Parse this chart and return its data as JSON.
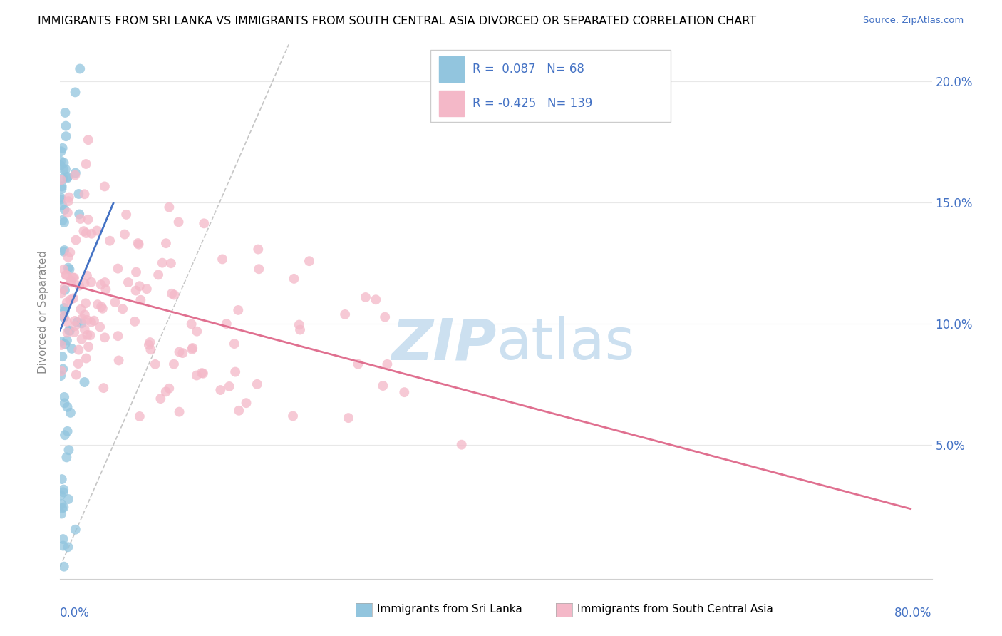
{
  "title": "IMMIGRANTS FROM SRI LANKA VS IMMIGRANTS FROM SOUTH CENTRAL ASIA DIVORCED OR SEPARATED CORRELATION CHART",
  "source": "Source: ZipAtlas.com",
  "ylabel_label": "Divorced or Separated",
  "sri_lanka_R": 0.087,
  "sri_lanka_N": 68,
  "south_central_R": -0.425,
  "south_central_N": 139,
  "blue_color": "#92c5de",
  "pink_color": "#f4b8c8",
  "blue_line_color": "#4472c4",
  "pink_line_color": "#e07090",
  "ref_line_color": "#c0c0c0",
  "watermark_color": "#cce0f0",
  "background_color": "#ffffff",
  "scatter_alpha": 0.75,
  "scatter_size": 100,
  "xlim": [
    0.0,
    0.82
  ],
  "ylim": [
    -0.005,
    0.215
  ],
  "right_yticks": [
    0.05,
    0.1,
    0.15,
    0.2
  ],
  "right_yticklabels": [
    "5.0%",
    "10.0%",
    "15.0%",
    "20.0%"
  ],
  "grid_color": "#e8e8e8",
  "tick_color": "#4472c4",
  "legend_label_sl": "Immigrants from Sri Lanka",
  "legend_label_sc": "Immigrants from South Central Asia"
}
